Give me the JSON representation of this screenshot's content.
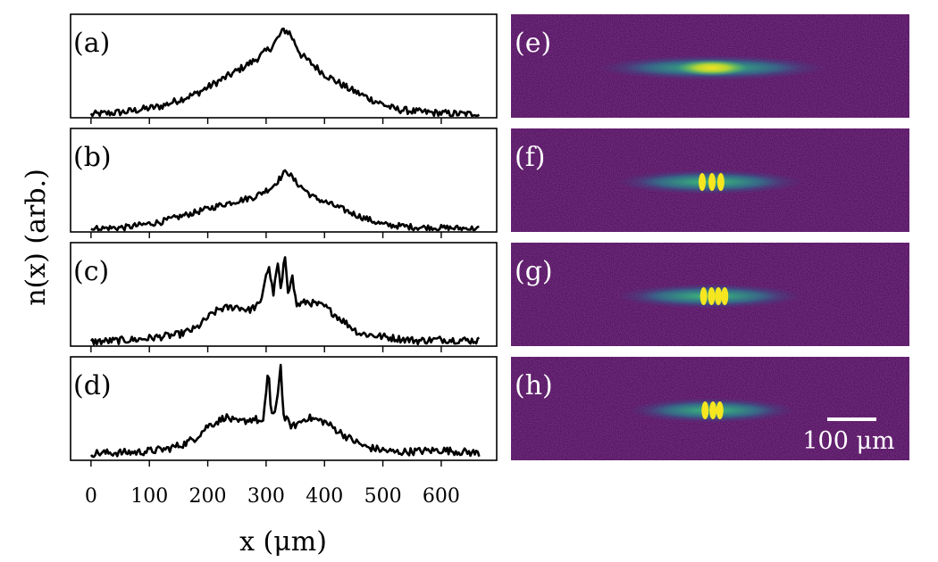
{
  "colors": {
    "background": "#44054f",
    "line": "#000000",
    "scale_bar": "#ffffff"
  },
  "chart_data": {
    "type": "line",
    "xlabel": "x (μm)",
    "ylabel": "n(x) (arb.)",
    "xlim": [
      -35,
      695
    ],
    "x_ticks": [
      0,
      100,
      200,
      300,
      400,
      500,
      600
    ],
    "x_tick_labels": [
      "0",
      "100",
      "200",
      "300",
      "400",
      "500",
      "600"
    ],
    "x_range": [
      0,
      665
    ],
    "panels": [
      {
        "label": "(a)",
        "anchors": [
          [
            0,
            1
          ],
          [
            60,
            3
          ],
          [
            120,
            7
          ],
          [
            180,
            16
          ],
          [
            240,
            30
          ],
          [
            280,
            40
          ],
          [
            310,
            50
          ],
          [
            330,
            62
          ],
          [
            340,
            60
          ],
          [
            360,
            44
          ],
          [
            400,
            30
          ],
          [
            440,
            20
          ],
          [
            480,
            12
          ],
          [
            520,
            5
          ],
          [
            560,
            3
          ],
          [
            600,
            2
          ],
          [
            665,
            1
          ]
        ],
        "noise": 2.6,
        "ylim": [
          0,
          72
        ]
      },
      {
        "label": "(b)",
        "anchors": [
          [
            0,
            1
          ],
          [
            60,
            2
          ],
          [
            120,
            6
          ],
          [
            180,
            13
          ],
          [
            230,
            19
          ],
          [
            280,
            24
          ],
          [
            310,
            31
          ],
          [
            325,
            38
          ],
          [
            335,
            43
          ],
          [
            350,
            35
          ],
          [
            380,
            24
          ],
          [
            420,
            17
          ],
          [
            460,
            10
          ],
          [
            500,
            4
          ],
          [
            560,
            2
          ],
          [
            665,
            1
          ]
        ],
        "noise": 2.2,
        "ylim": [
          0,
          72
        ]
      },
      {
        "label": "(c)",
        "anchors": [
          [
            0,
            2
          ],
          [
            80,
            4
          ],
          [
            150,
            8
          ],
          [
            180,
            13
          ],
          [
            200,
            22
          ],
          [
            220,
            29
          ],
          [
            250,
            31
          ],
          [
            270,
            28
          ],
          [
            290,
            33
          ],
          [
            300,
            58
          ],
          [
            306,
            62
          ],
          [
            312,
            40
          ],
          [
            320,
            66
          ],
          [
            326,
            42
          ],
          [
            332,
            75
          ],
          [
            338,
            42
          ],
          [
            344,
            58
          ],
          [
            352,
            32
          ],
          [
            370,
            35
          ],
          [
            400,
            31
          ],
          [
            430,
            20
          ],
          [
            460,
            9
          ],
          [
            520,
            5
          ],
          [
            560,
            3
          ],
          [
            600,
            4
          ],
          [
            665,
            3
          ]
        ],
        "noise": 3.0,
        "ylim": [
          0,
          82
        ]
      },
      {
        "label": "(d)",
        "anchors": [
          [
            0,
            5
          ],
          [
            80,
            6
          ],
          [
            130,
            9
          ],
          [
            160,
            14
          ],
          [
            180,
            20
          ],
          [
            200,
            31
          ],
          [
            220,
            36
          ],
          [
            230,
            40
          ],
          [
            250,
            34
          ],
          [
            280,
            38
          ],
          [
            295,
            33
          ],
          [
            300,
            64
          ],
          [
            304,
            88
          ],
          [
            308,
            45
          ],
          [
            314,
            38
          ],
          [
            320,
            64
          ],
          [
            325,
            88
          ],
          [
            330,
            40
          ],
          [
            345,
            30
          ],
          [
            370,
            39
          ],
          [
            400,
            35
          ],
          [
            440,
            20
          ],
          [
            470,
            11
          ],
          [
            520,
            6
          ],
          [
            600,
            8
          ],
          [
            665,
            5
          ]
        ],
        "noise": 3.6,
        "ylim": [
          0,
          95
        ]
      }
    ]
  },
  "images": [
    {
      "label": "(e)",
      "cloud_width_um": 470,
      "center_um": 320,
      "peaks_um": []
    },
    {
      "label": "(f)",
      "cloud_width_um": 380,
      "center_um": 315,
      "peaks_um": [
        300,
        320,
        338
      ]
    },
    {
      "label": "(g)",
      "cloud_width_um": 380,
      "center_um": 315,
      "peaks_um": [
        303,
        319,
        333,
        346
      ]
    },
    {
      "label": "(h)",
      "cloud_width_um": 340,
      "center_um": 320,
      "peaks_um": [
        306,
        322,
        336
      ]
    }
  ],
  "scale_bar": {
    "label": "100 μm",
    "length_um": 100
  }
}
